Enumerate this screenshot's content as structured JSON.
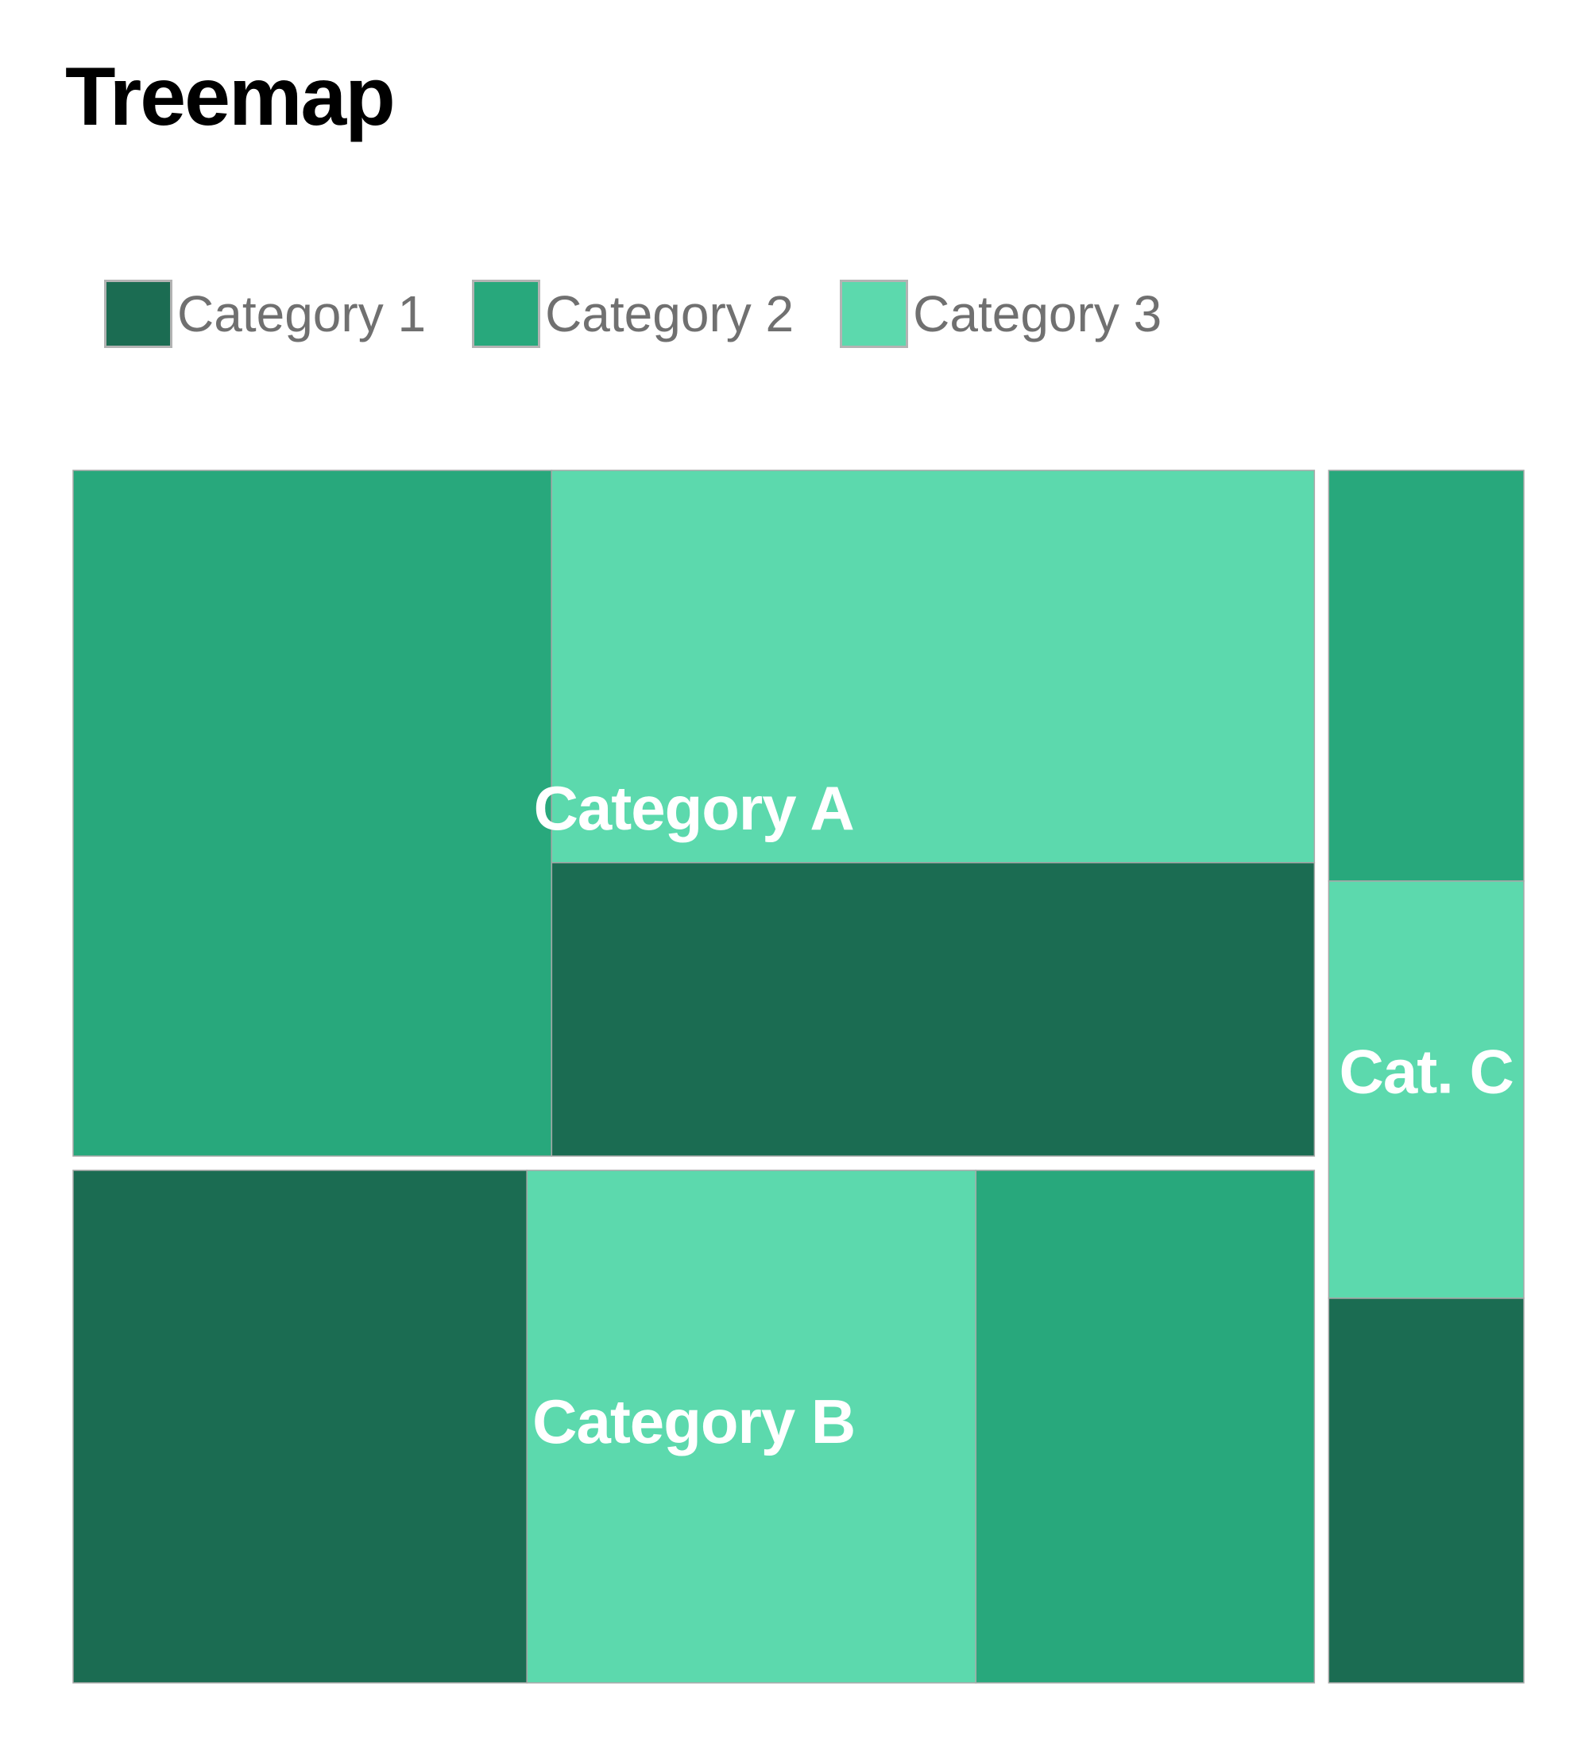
{
  "title": "Treemap",
  "legend": [
    {
      "label": "Category 1",
      "color": "#1b6c52"
    },
    {
      "label": "Category 2",
      "color": "#28a87c"
    },
    {
      "label": "Category 3",
      "color": "#5cd9ad"
    }
  ],
  "chart_data": {
    "type": "treemap",
    "title": "Treemap",
    "legend": [
      "Category 1",
      "Category 2",
      "Category 3"
    ],
    "legend_position": "top-left",
    "groups": [
      {
        "name": "Category A",
        "label": "Category A",
        "children": [
          {
            "series": "Category 2",
            "value": 261
          },
          {
            "series": "Category 3",
            "value": 238
          },
          {
            "series": "Category 1",
            "value": 178
          }
        ]
      },
      {
        "name": "Category B",
        "label": "Category B",
        "children": [
          {
            "series": "Category 1",
            "value": 185
          },
          {
            "series": "Category 3",
            "value": 183
          },
          {
            "series": "Category 2",
            "value": 138
          }
        ]
      },
      {
        "name": "Category C",
        "label": "Cat. C",
        "children": [
          {
            "series": "Category 2",
            "value": 63
          },
          {
            "series": "Category 3",
            "value": 64
          },
          {
            "series": "Category 1",
            "value": 59
          }
        ]
      }
    ]
  }
}
